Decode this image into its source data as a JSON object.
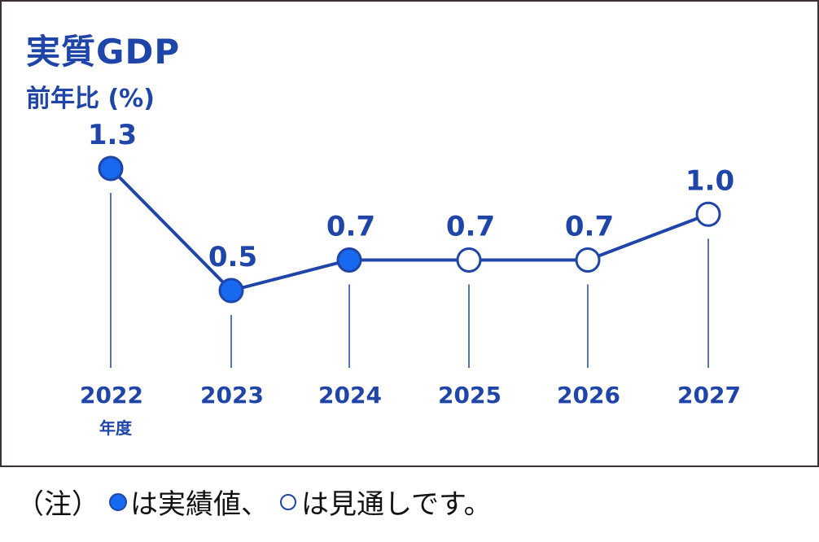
{
  "colors": {
    "accent": "#1f45a8",
    "filled_marker": "#1769f0",
    "open_marker": "#ffffff",
    "border": "#3a3230",
    "note_text": "#111111"
  },
  "header": {
    "title": "実質GDP",
    "subtitle": "前年比 (%)"
  },
  "x_unit_label": "年度",
  "note": {
    "prefix": "（注）",
    "actual_text": "は実績値、",
    "forecast_text": "は見通しです。"
  },
  "chart_data": {
    "type": "line",
    "title": "実質GDP",
    "ylabel": "前年比 (%)",
    "xlabel": "年度",
    "categories": [
      "2022",
      "2023",
      "2024",
      "2025",
      "2026",
      "2027"
    ],
    "values": [
      1.3,
      0.5,
      0.7,
      0.7,
      0.7,
      1.0
    ],
    "value_labels": [
      "1.3",
      "0.5",
      "0.7",
      "0.7",
      "0.7",
      "1.0"
    ],
    "marker_types": [
      "actual",
      "actual",
      "actual",
      "forecast",
      "forecast",
      "forecast"
    ],
    "legend": [
      {
        "marker": "filled-circle",
        "label": "実績値"
      },
      {
        "marker": "open-circle",
        "label": "見通し"
      }
    ],
    "grid": false,
    "y_axis_visible": false,
    "ylim": [
      0.3,
      1.4
    ]
  }
}
